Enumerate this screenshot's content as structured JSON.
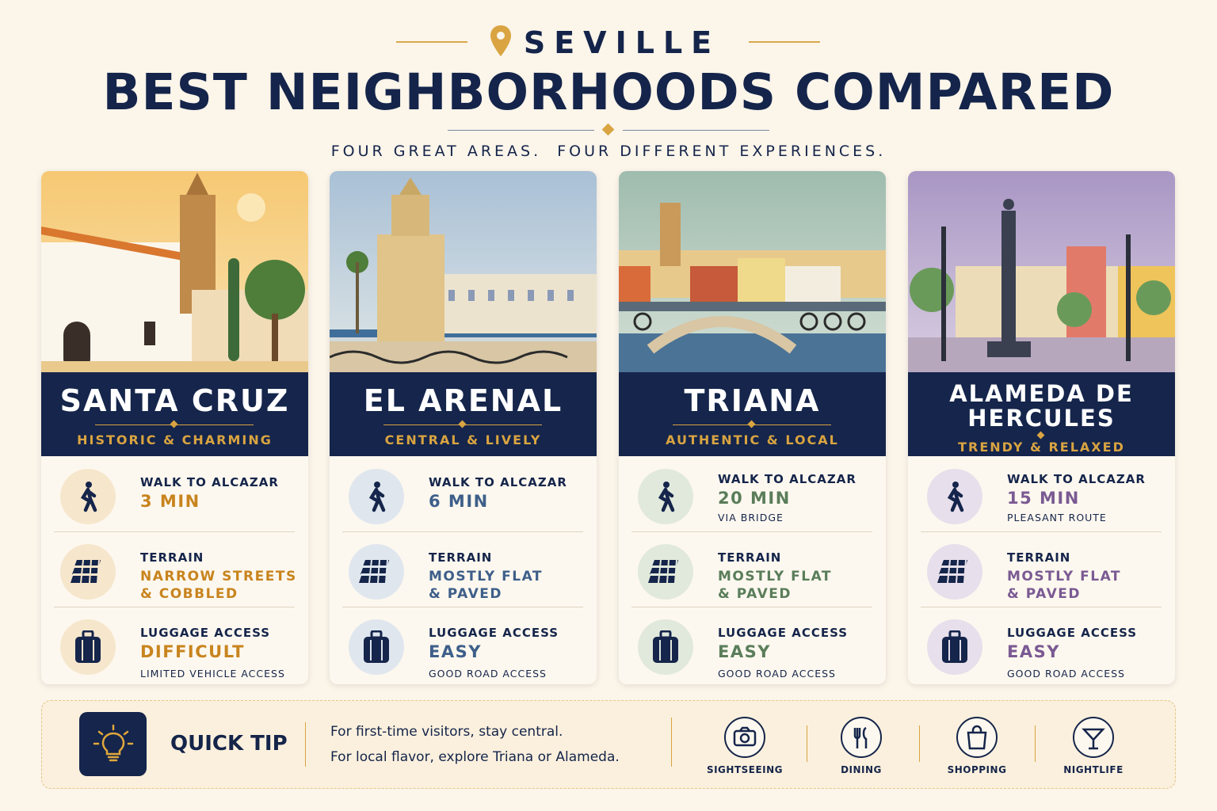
{
  "header": {
    "kicker": "SEVILLE",
    "title": "BEST NEIGHBORHOODS COMPARED",
    "subtitle": "FOUR GREAT AREAS.  FOUR DIFFERENT EXPERIENCES."
  },
  "cards": [
    {
      "name": "SANTA CRUZ",
      "tagline": "HISTORIC & CHARMING",
      "rows": [
        {
          "label": "WALK TO ALCAZAR",
          "value": "3 MIN"
        },
        {
          "label": "TERRAIN",
          "value": "NARROW STREETS\n& COBBLED"
        },
        {
          "label": "LUGGAGE ACCESS",
          "value": "DIFFICULT",
          "note": "LIMITED VEHICLE ACCESS"
        }
      ]
    },
    {
      "name": "EL ARENAL",
      "tagline": "CENTRAL & LIVELY",
      "rows": [
        {
          "label": "WALK TO ALCAZAR",
          "value": "6 MIN"
        },
        {
          "label": "TERRAIN",
          "value": "MOSTLY FLAT\n& PAVED"
        },
        {
          "label": "LUGGAGE ACCESS",
          "value": "EASY",
          "note": "GOOD ROAD ACCESS"
        }
      ]
    },
    {
      "name": "TRIANA",
      "tagline": "AUTHENTIC & LOCAL",
      "rows": [
        {
          "label": "WALK TO ALCAZAR",
          "value": "20 MIN",
          "note": "VIA BRIDGE"
        },
        {
          "label": "TERRAIN",
          "value": "MOSTLY FLAT\n& PAVED"
        },
        {
          "label": "LUGGAGE ACCESS",
          "value": "EASY",
          "note": "GOOD ROAD ACCESS"
        }
      ]
    },
    {
      "name": "ALAMEDA DE\nHERCULES",
      "tagline": "TRENDY & RELAXED",
      "rows": [
        {
          "label": "WALK TO ALCAZAR",
          "value": "15 MIN",
          "note": "PLEASANT ROUTE"
        },
        {
          "label": "TERRAIN",
          "value": "MOSTLY FLAT\n& PAVED"
        },
        {
          "label": "LUGGAGE ACCESS",
          "value": "EASY",
          "note": "GOOD ROAD ACCESS"
        }
      ]
    }
  ],
  "tip": {
    "title": "QUICK TIP",
    "lines": [
      "For first-time visitors, stay central.",
      "For local flavor, explore Triana or Alameda."
    ],
    "icons": [
      "SIGHTSEEING",
      "DINING",
      "SHOPPING",
      "NIGHTLIFE"
    ]
  }
}
